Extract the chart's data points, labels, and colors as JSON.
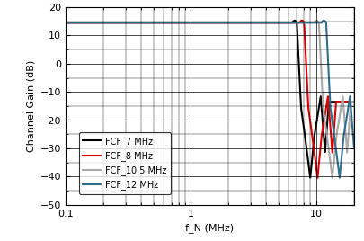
{
  "xlabel": "f_N (MHz)",
  "ylabel": "Channel Gain (dB)",
  "xlim": [
    0.1,
    20
  ],
  "ylim": [
    -50,
    20
  ],
  "yticks": [
    -50,
    -40,
    -30,
    -20,
    -10,
    0,
    10,
    20
  ],
  "xticks_major": [
    0.1,
    1,
    10
  ],
  "background_color": "#ffffff",
  "grid_color": "#000000",
  "lines": [
    {
      "label": "FCF_7 MHz",
      "color": "#000000",
      "fcf": 7.0,
      "linewidth": 1.5
    },
    {
      "label": "FCF_8 MHz",
      "color": "#dd0000",
      "fcf": 8.0,
      "linewidth": 1.5
    },
    {
      "label": "FCF_10.5 MHz",
      "color": "#aaaaaa",
      "fcf": 10.5,
      "linewidth": 1.5
    },
    {
      "label": "FCF_12 MHz",
      "color": "#2e6f8e",
      "fcf": 12.0,
      "linewidth": 1.5
    }
  ],
  "flat_gain_db": 14.5,
  "stopband_floor": -50,
  "figsize": [
    4.06,
    2.68
  ],
  "dpi": 100,
  "legend_fontsize": 7,
  "tick_labelsize": 8,
  "axis_labelsize": 8
}
